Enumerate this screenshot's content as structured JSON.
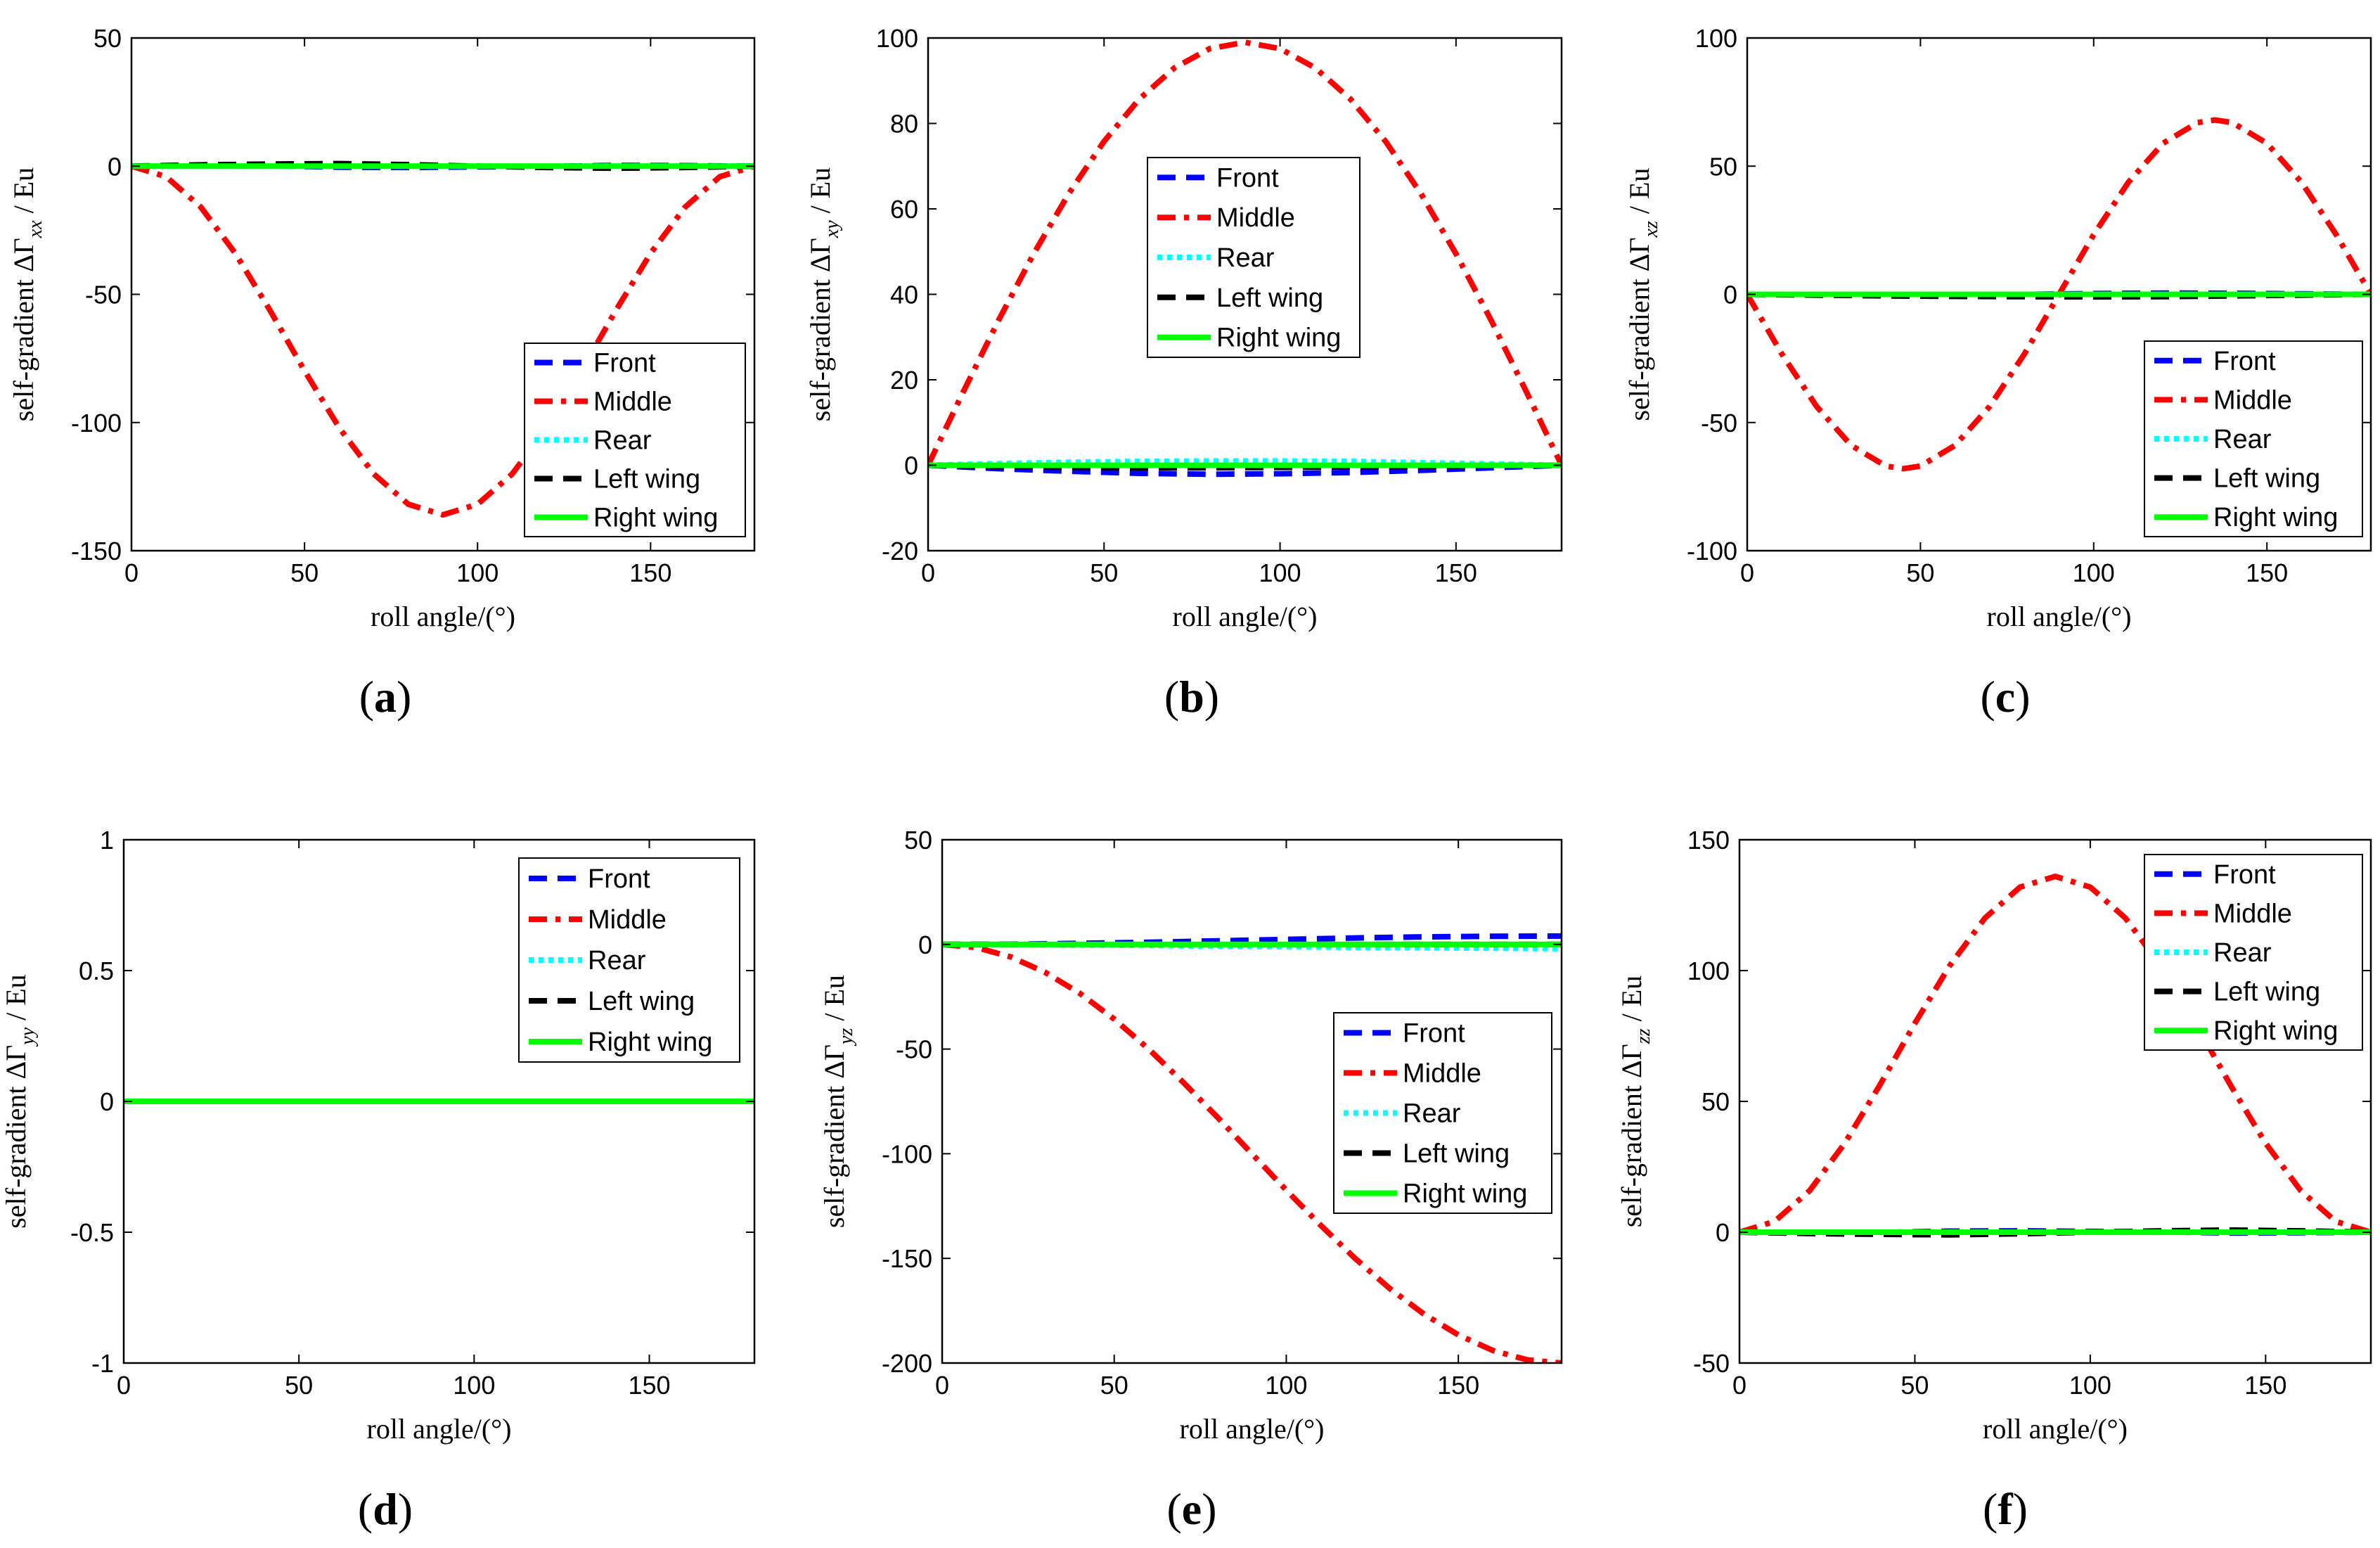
{
  "chart_data": [
    {
      "type": "line",
      "panel_label": "(a)",
      "ylabel": {
        "text": "self-gradient ΔΓ",
        "sub": "xx",
        "unit": " / Eu"
      },
      "xlabel": "roll angle/(°)",
      "xlim": [
        0,
        180
      ],
      "ylim": [
        -150,
        50
      ],
      "xticks": [
        0,
        50,
        100,
        150
      ],
      "yticks": [
        -150,
        -100,
        -50,
        0,
        50
      ],
      "legend": "bottom-right",
      "series": [
        {
          "name": "Front",
          "style": "dash",
          "color": "#0000ff",
          "x": [
            0,
            20,
            40,
            60,
            80,
            100,
            120,
            140,
            160,
            180
          ],
          "y": [
            0,
            0.2,
            0.1,
            -0.4,
            -0.5,
            -0.3,
            -0.1,
            0.3,
            0.2,
            0
          ]
        },
        {
          "name": "Middle",
          "style": "dashdot",
          "color": "#ff0000",
          "x": [
            0,
            10,
            20,
            30,
            40,
            50,
            60,
            70,
            80,
            90,
            100,
            110,
            120,
            130,
            140,
            150,
            160,
            170,
            180
          ],
          "y": [
            0,
            -4.1,
            -15.9,
            -34,
            -56.2,
            -79.8,
            -102,
            -120.1,
            -131.9,
            -136,
            -131.9,
            -120.1,
            -102,
            -79.8,
            -56.2,
            -34,
            -15.9,
            -4.1,
            0
          ]
        },
        {
          "name": "Rear",
          "style": "dot",
          "color": "#00ffff",
          "x": [
            0,
            90,
            180
          ],
          "y": [
            0,
            0,
            0
          ]
        },
        {
          "name": "Left wing",
          "style": "dash",
          "color": "#000000",
          "x": [
            0,
            20,
            40,
            60,
            80,
            100,
            120,
            140,
            160,
            180
          ],
          "y": [
            0,
            0.5,
            0.8,
            1,
            0.6,
            0,
            -0.5,
            -0.8,
            -0.5,
            0
          ]
        },
        {
          "name": "Right wing",
          "style": "solid",
          "color": "#00ff00",
          "x": [
            0,
            90,
            180
          ],
          "y": [
            0,
            0,
            0
          ]
        }
      ]
    },
    {
      "type": "line",
      "panel_label": "(b)",
      "ylabel": {
        "text": "self-gradient ΔΓ",
        "sub": "xy",
        "unit": " / Eu"
      },
      "xlabel": "roll angle/(°)",
      "xlim": [
        0,
        180
      ],
      "ylim": [
        -20,
        100
      ],
      "xticks": [
        0,
        50,
        100,
        150
      ],
      "yticks": [
        -20,
        0,
        20,
        40,
        60,
        80,
        100
      ],
      "legend": "center",
      "series": [
        {
          "name": "Front",
          "style": "dash",
          "color": "#0000ff",
          "x": [
            0,
            20,
            40,
            60,
            80,
            100,
            120,
            140,
            160,
            180
          ],
          "y": [
            0,
            -0.8,
            -1.4,
            -1.9,
            -2.1,
            -2,
            -1.7,
            -1.2,
            -0.6,
            0
          ]
        },
        {
          "name": "Middle",
          "style": "dashdot",
          "color": "#ff0000",
          "x": [
            0,
            10,
            20,
            30,
            40,
            50,
            60,
            70,
            80,
            90,
            100,
            110,
            120,
            130,
            140,
            150,
            160,
            170,
            180
          ],
          "y": [
            0,
            17.2,
            33.9,
            49.5,
            63.6,
            75.8,
            85.7,
            93,
            97.5,
            99,
            97.5,
            93,
            85.7,
            75.8,
            63.6,
            49.5,
            33.9,
            17.2,
            0
          ]
        },
        {
          "name": "Rear",
          "style": "dot",
          "color": "#00ffff",
          "x": [
            0,
            20,
            40,
            60,
            80,
            100,
            120,
            140,
            160,
            180
          ],
          "y": [
            0,
            0.4,
            0.7,
            0.9,
            1,
            1,
            0.9,
            0.6,
            0.3,
            0
          ]
        },
        {
          "name": "Left wing",
          "style": "dash",
          "color": "#000000",
          "x": [
            0,
            20,
            40,
            60,
            80,
            100,
            120,
            140,
            160,
            180
          ],
          "y": [
            0,
            -0.3,
            -0.5,
            -0.6,
            -0.6,
            -0.5,
            -0.4,
            -0.3,
            -0.1,
            0
          ]
        },
        {
          "name": "Right wing",
          "style": "solid",
          "color": "#00ff00",
          "x": [
            0,
            90,
            180
          ],
          "y": [
            0,
            0,
            0
          ]
        }
      ]
    },
    {
      "type": "line",
      "panel_label": "(c)",
      "ylabel": {
        "text": "self-gradient ΔΓ",
        "sub": "xz",
        "unit": " / Eu"
      },
      "xlabel": "roll angle/(°)",
      "xlim": [
        0,
        180
      ],
      "ylim": [
        -100,
        100
      ],
      "xticks": [
        0,
        50,
        100,
        150
      ],
      "yticks": [
        -100,
        -50,
        0,
        50,
        100
      ],
      "legend": "bottom-right",
      "series": [
        {
          "name": "Front",
          "style": "dash",
          "color": "#0000ff",
          "x": [
            0,
            20,
            40,
            60,
            80,
            100,
            120,
            140,
            160,
            180
          ],
          "y": [
            0,
            -0.2,
            -0.4,
            -0.3,
            0,
            0.3,
            0.5,
            0.4,
            0.2,
            0
          ]
        },
        {
          "name": "Middle",
          "style": "dashdot",
          "color": "#ff0000",
          "x": [
            0,
            10,
            20,
            30,
            40,
            45,
            50,
            60,
            70,
            80,
            90,
            100,
            110,
            120,
            130,
            135,
            140,
            150,
            160,
            170,
            180
          ],
          "y": [
            0,
            -23.3,
            -43.7,
            -58.9,
            -67,
            -68,
            -67,
            -58.9,
            -43.7,
            -23.3,
            0,
            23.3,
            43.7,
            58.9,
            67,
            68,
            67,
            58.9,
            43.7,
            23.3,
            0
          ]
        },
        {
          "name": "Rear",
          "style": "dot",
          "color": "#00ffff",
          "x": [
            0,
            90,
            180
          ],
          "y": [
            0,
            0,
            0
          ]
        },
        {
          "name": "Left wing",
          "style": "dash",
          "color": "#000000",
          "x": [
            0,
            20,
            40,
            60,
            80,
            100,
            120,
            140,
            160,
            180
          ],
          "y": [
            0,
            -0.3,
            -0.6,
            -0.8,
            -0.9,
            -1,
            -0.9,
            -0.6,
            -0.3,
            0
          ]
        },
        {
          "name": "Right wing",
          "style": "solid",
          "color": "#00ff00",
          "x": [
            0,
            90,
            180
          ],
          "y": [
            0,
            0,
            0
          ]
        }
      ]
    },
    {
      "type": "line",
      "panel_label": "(d)",
      "ylabel": {
        "text": "self-gradient ΔΓ",
        "sub": "yy",
        "unit": " / Eu"
      },
      "xlabel": "roll angle/(°)",
      "xlim": [
        0,
        180
      ],
      "ylim": [
        -1,
        1
      ],
      "xticks": [
        0,
        50,
        100,
        150
      ],
      "yticks": [
        -1,
        -0.5,
        0,
        0.5,
        1
      ],
      "legend": "top-right",
      "series": [
        {
          "name": "Front",
          "style": "dash",
          "color": "#0000ff",
          "x": [
            0,
            180
          ],
          "y": [
            0,
            0
          ]
        },
        {
          "name": "Middle",
          "style": "dashdot",
          "color": "#ff0000",
          "x": [
            0,
            180
          ],
          "y": [
            0,
            0
          ]
        },
        {
          "name": "Rear",
          "style": "dot",
          "color": "#00ffff",
          "x": [
            0,
            180
          ],
          "y": [
            0,
            0
          ]
        },
        {
          "name": "Left wing",
          "style": "dash",
          "color": "#000000",
          "x": [
            0,
            180
          ],
          "y": [
            0,
            0
          ]
        },
        {
          "name": "Right wing",
          "style": "solid",
          "color": "#00ff00",
          "x": [
            0,
            180
          ],
          "y": [
            0,
            0
          ]
        }
      ]
    },
    {
      "type": "line",
      "panel_label": "(e)",
      "ylabel": {
        "text": "self-gradient ΔΓ",
        "sub": "yz",
        "unit": " / Eu"
      },
      "xlabel": "roll angle/(°)",
      "xlim": [
        0,
        180
      ],
      "ylim": [
        -200,
        50
      ],
      "xticks": [
        0,
        50,
        100,
        150
      ],
      "yticks": [
        -200,
        -150,
        -100,
        -50,
        0,
        50
      ],
      "legend": "center-right",
      "series": [
        {
          "name": "Front",
          "style": "dash",
          "color": "#0000ff",
          "x": [
            0,
            20,
            40,
            60,
            80,
            100,
            120,
            140,
            160,
            180
          ],
          "y": [
            0,
            0.1,
            0.5,
            1,
            1.7,
            2.4,
            3.1,
            3.6,
            3.9,
            4
          ]
        },
        {
          "name": "Middle",
          "style": "dashdot",
          "color": "#ff0000",
          "x": [
            0,
            10,
            20,
            30,
            40,
            50,
            60,
            70,
            80,
            90,
            100,
            110,
            120,
            130,
            140,
            150,
            160,
            170,
            180
          ],
          "y": [
            0,
            -1.5,
            -6,
            -13.4,
            -23.4,
            -35.7,
            -50,
            -65.8,
            -82.6,
            -100,
            -117.4,
            -134.2,
            -150,
            -164.3,
            -176.6,
            -186.6,
            -194,
            -198.5,
            -200
          ]
        },
        {
          "name": "Rear",
          "style": "dot",
          "color": "#00ffff",
          "x": [
            0,
            20,
            40,
            60,
            80,
            100,
            120,
            140,
            160,
            180
          ],
          "y": [
            0,
            -0.1,
            -0.2,
            -0.5,
            -0.8,
            -1.1,
            -1.4,
            -1.6,
            -1.8,
            -2
          ]
        },
        {
          "name": "Left wing",
          "style": "dash",
          "color": "#000000",
          "x": [
            0,
            20,
            40,
            60,
            80,
            100,
            120,
            140,
            160,
            180
          ],
          "y": [
            0,
            0,
            0,
            0,
            0,
            0,
            0,
            0,
            0,
            0
          ]
        },
        {
          "name": "Right wing",
          "style": "solid",
          "color": "#00ff00",
          "x": [
            0,
            90,
            180
          ],
          "y": [
            0,
            0,
            0
          ]
        }
      ]
    },
    {
      "type": "line",
      "panel_label": "(f)",
      "ylabel": {
        "text": "self-gradient ΔΓ",
        "sub": "zz",
        "unit": " / Eu"
      },
      "xlabel": "roll angle/(°)",
      "xlim": [
        0,
        180
      ],
      "ylim": [
        -50,
        150
      ],
      "xticks": [
        0,
        50,
        100,
        150
      ],
      "yticks": [
        -50,
        0,
        50,
        100,
        150
      ],
      "legend": "top-right",
      "series": [
        {
          "name": "Front",
          "style": "dash",
          "color": "#0000ff",
          "x": [
            0,
            20,
            40,
            60,
            80,
            100,
            120,
            140,
            160,
            180
          ],
          "y": [
            0,
            -0.2,
            -0.1,
            0.4,
            0.5,
            0.3,
            0.1,
            -0.3,
            -0.2,
            0
          ]
        },
        {
          "name": "Middle",
          "style": "dashdot",
          "color": "#ff0000",
          "x": [
            0,
            10,
            20,
            30,
            40,
            50,
            60,
            70,
            80,
            90,
            100,
            110,
            120,
            130,
            140,
            150,
            160,
            170,
            180
          ],
          "y": [
            0,
            4.1,
            15.9,
            34,
            56.2,
            79.8,
            102,
            120.1,
            131.9,
            136,
            131.9,
            120.1,
            102,
            79.8,
            56.2,
            34,
            15.9,
            4.1,
            0
          ]
        },
        {
          "name": "Rear",
          "style": "dot",
          "color": "#00ffff",
          "x": [
            0,
            90,
            180
          ],
          "y": [
            0,
            0,
            0
          ]
        },
        {
          "name": "Left wing",
          "style": "dash",
          "color": "#000000",
          "x": [
            0,
            20,
            40,
            60,
            80,
            100,
            120,
            140,
            160,
            180
          ],
          "y": [
            0,
            -0.5,
            -0.8,
            -1,
            -0.6,
            0,
            0.5,
            0.8,
            0.5,
            0
          ]
        },
        {
          "name": "Right wing",
          "style": "solid",
          "color": "#00ff00",
          "x": [
            0,
            90,
            180
          ],
          "y": [
            0,
            0,
            0
          ]
        }
      ]
    }
  ]
}
